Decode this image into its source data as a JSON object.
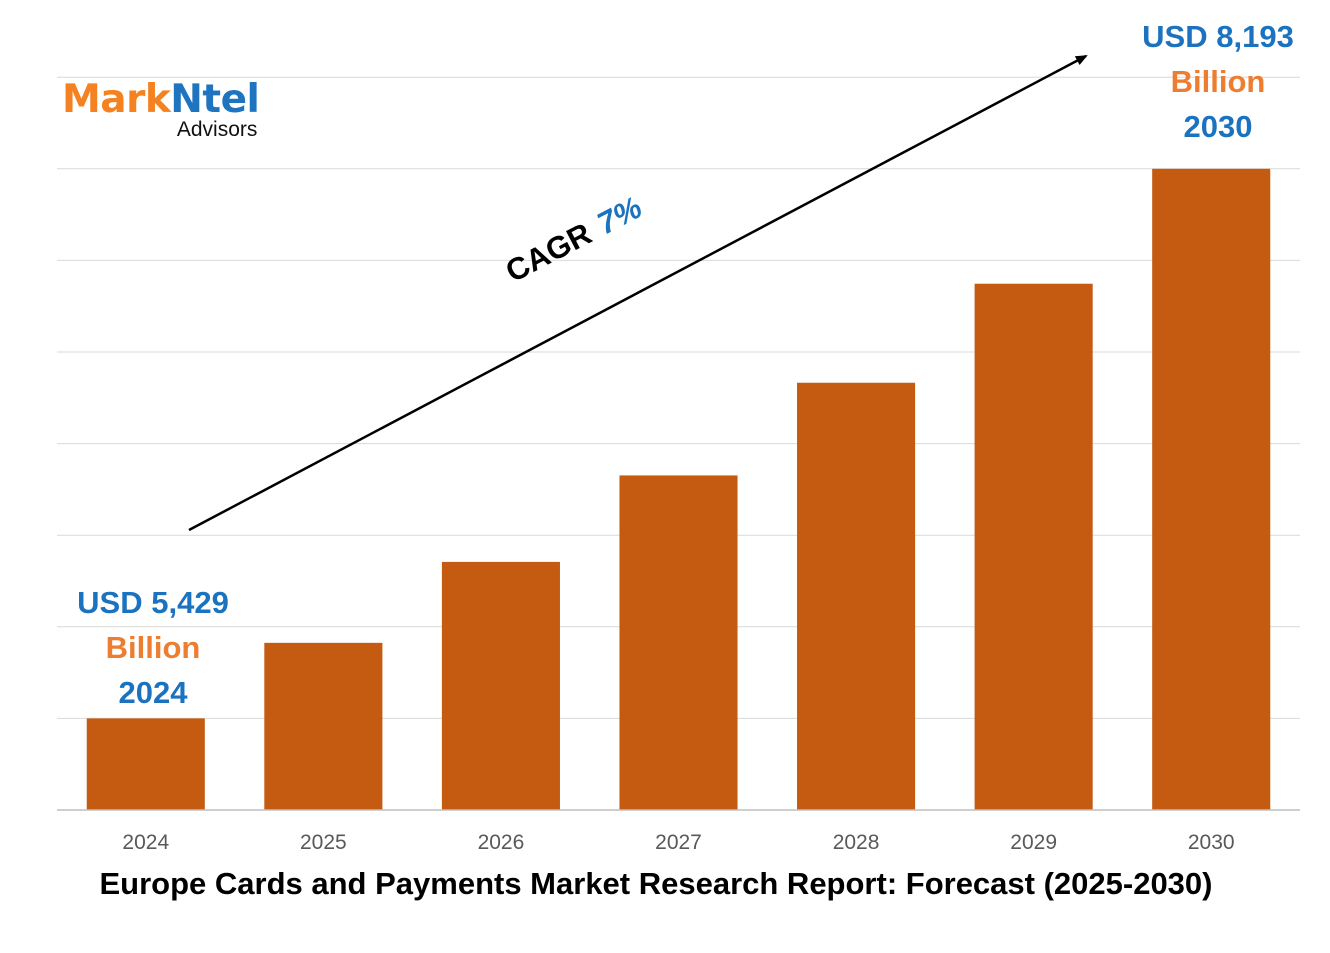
{
  "logo": {
    "brand_part1": "Mark",
    "brand_part2": "Ntel",
    "sub": "Advisors"
  },
  "callouts": {
    "start": {
      "amount": "USD 5,429",
      "unit": "Billion",
      "year": "2024"
    },
    "end": {
      "amount": "USD 8,193",
      "unit": "Billion",
      "year": "2030"
    }
  },
  "cagr": {
    "label": "CAGR",
    "value": "7%"
  },
  "colors": {
    "bar": "#c55a11",
    "grid": "#d9d9d9",
    "axis": "#bfbfbf",
    "accent_blue": "#1b72be",
    "accent_orange": "#ed7d31"
  },
  "chart_data": {
    "type": "bar",
    "title": "Europe Cards and Payments Market Research Report: Forecast (2025-2030)",
    "xlabel": "",
    "ylabel": "",
    "categories": [
      "2024",
      "2025",
      "2026",
      "2027",
      "2028",
      "2029",
      "2030"
    ],
    "series": [
      {
        "values": [
          5429,
          5809,
          6216,
          6651,
          7117,
          7615,
          8193
        ]
      }
    ],
    "value_labels": {
      "2024": "USD 5,429 Billion",
      "2030": "USD 8,193 Billion"
    },
    "grid": true,
    "y_axis_visible": false,
    "legend": "none"
  }
}
